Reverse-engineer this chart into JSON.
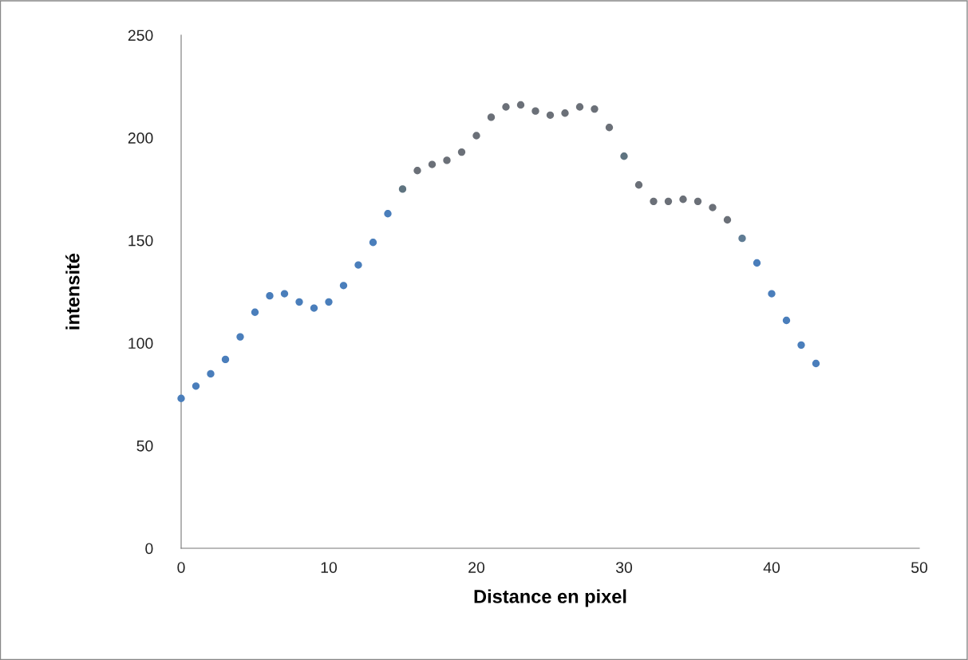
{
  "chart_data": {
    "type": "scatter",
    "xlabel": "Distance en pixel",
    "ylabel": "intensité",
    "x": [
      0,
      1,
      2,
      3,
      4,
      5,
      6,
      7,
      8,
      9,
      10,
      11,
      12,
      13,
      14,
      15,
      16,
      17,
      18,
      19,
      20,
      21,
      22,
      23,
      24,
      25,
      26,
      27,
      28,
      29,
      30,
      31,
      32,
      33,
      34,
      35,
      36,
      37,
      38,
      39,
      40,
      41,
      42,
      43
    ],
    "values": [
      73,
      79,
      85,
      92,
      103,
      115,
      123,
      124,
      120,
      117,
      120,
      128,
      138,
      149,
      163,
      175,
      184,
      187,
      189,
      193,
      201,
      210,
      215,
      216,
      213,
      211,
      212,
      215,
      214,
      205,
      191,
      177,
      169,
      169,
      170,
      169,
      166,
      160,
      151,
      139,
      124,
      111,
      99,
      90
    ],
    "colors": [
      "#4a7ebb",
      "#4a7ebb",
      "#4a7ebb",
      "#4a7ebb",
      "#4a7ebb",
      "#4a7ebb",
      "#4a7ebb",
      "#4a7ebb",
      "#4a7ebb",
      "#4a7ebb",
      "#4a7ebb",
      "#4a7ebb",
      "#4a7ebb",
      "#4a7ebb",
      "#4a7ebb",
      "#5f7480",
      "#6b7078",
      "#6b7078",
      "#6b7078",
      "#6b7078",
      "#6b7078",
      "#6b7078",
      "#6b7078",
      "#6b7078",
      "#6b7078",
      "#6b7078",
      "#6b7078",
      "#6b7078",
      "#6b7078",
      "#6b7078",
      "#5f7480",
      "#6b7078",
      "#6b7078",
      "#6b7078",
      "#6b7078",
      "#6b7078",
      "#6b7078",
      "#6b7078",
      "#5f7c94",
      "#4a7ebb",
      "#4a7ebb",
      "#4a7ebb",
      "#4a7ebb",
      "#4a7ebb"
    ],
    "marker": "circle",
    "xlim": [
      0,
      50
    ],
    "xticks": [
      0,
      10,
      20,
      30,
      40,
      50
    ],
    "ylim": [
      0,
      250
    ],
    "yticks": [
      0,
      50,
      100,
      150,
      200,
      250
    ],
    "grid": false,
    "legend": false
  }
}
